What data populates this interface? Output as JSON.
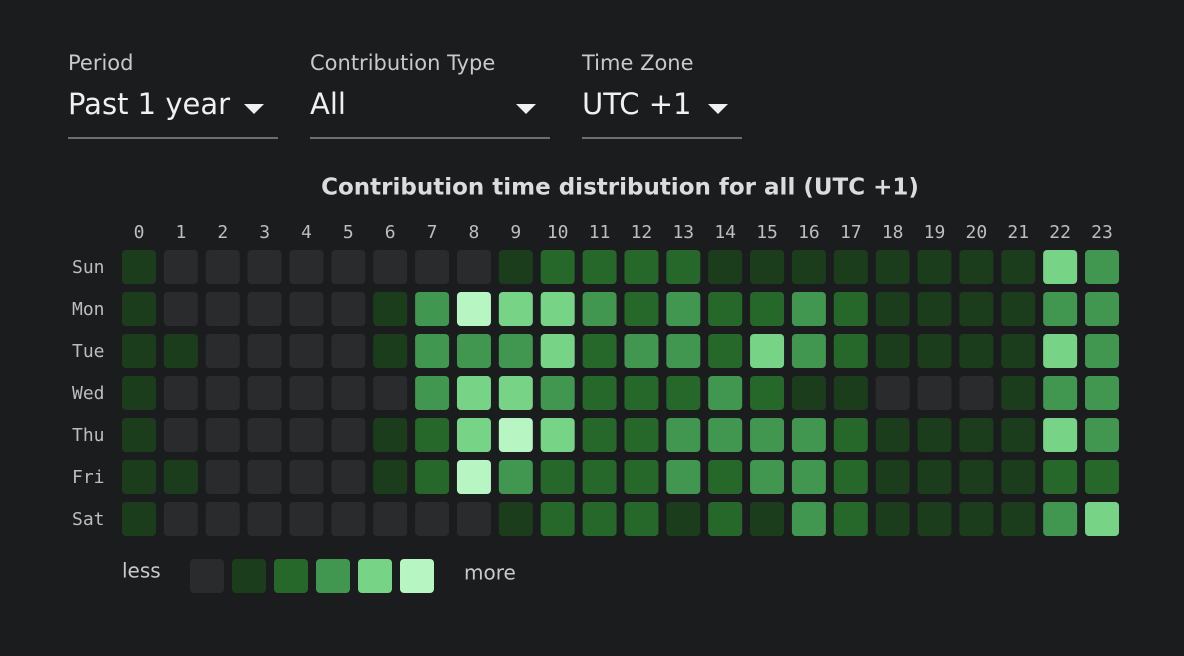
{
  "controls": [
    {
      "label": "Period",
      "value": "Past 1 year"
    },
    {
      "label": "Contribution Type",
      "value": "All"
    },
    {
      "label": "Time Zone",
      "value": "UTC +1"
    }
  ],
  "chart_data": {
    "type": "heatmap",
    "title": "Contribution time distribution for all (UTC +1)",
    "x_categories": [
      "0",
      "1",
      "2",
      "3",
      "4",
      "5",
      "6",
      "7",
      "8",
      "9",
      "10",
      "11",
      "12",
      "13",
      "14",
      "15",
      "16",
      "17",
      "18",
      "19",
      "20",
      "21",
      "22",
      "23"
    ],
    "y_categories": [
      "Sun",
      "Mon",
      "Tue",
      "Wed",
      "Thu",
      "Fri",
      "Sat"
    ],
    "values": [
      [
        1,
        0,
        0,
        0,
        0,
        0,
        0,
        0,
        0,
        1,
        2,
        2,
        2,
        2,
        1,
        1,
        1,
        1,
        1,
        1,
        1,
        1,
        4,
        3
      ],
      [
        1,
        0,
        0,
        0,
        0,
        0,
        1,
        3,
        5,
        4,
        4,
        3,
        2,
        3,
        2,
        2,
        3,
        2,
        1,
        1,
        1,
        1,
        3,
        3
      ],
      [
        1,
        1,
        0,
        0,
        0,
        0,
        1,
        3,
        3,
        3,
        4,
        2,
        3,
        3,
        2,
        4,
        3,
        2,
        1,
        1,
        1,
        1,
        4,
        3
      ],
      [
        1,
        0,
        0,
        0,
        0,
        0,
        0,
        3,
        4,
        4,
        3,
        2,
        2,
        2,
        3,
        2,
        1,
        1,
        0,
        0,
        0,
        1,
        3,
        3
      ],
      [
        1,
        0,
        0,
        0,
        0,
        0,
        1,
        2,
        4,
        5,
        4,
        2,
        2,
        3,
        3,
        3,
        3,
        2,
        1,
        1,
        1,
        1,
        4,
        3
      ],
      [
        1,
        1,
        0,
        0,
        0,
        0,
        1,
        2,
        5,
        3,
        2,
        2,
        2,
        3,
        2,
        3,
        3,
        2,
        1,
        1,
        1,
        1,
        2,
        2
      ],
      [
        1,
        0,
        0,
        0,
        0,
        0,
        0,
        0,
        0,
        1,
        2,
        2,
        2,
        1,
        2,
        1,
        3,
        2,
        1,
        1,
        1,
        1,
        3,
        4
      ]
    ],
    "colors": [
      "#2a2b2c",
      "#1b3d1c",
      "#26682a",
      "#419650",
      "#77d487",
      "#b7f5c2"
    ],
    "legend": {
      "low_label": "less",
      "high_label": "more"
    }
  }
}
